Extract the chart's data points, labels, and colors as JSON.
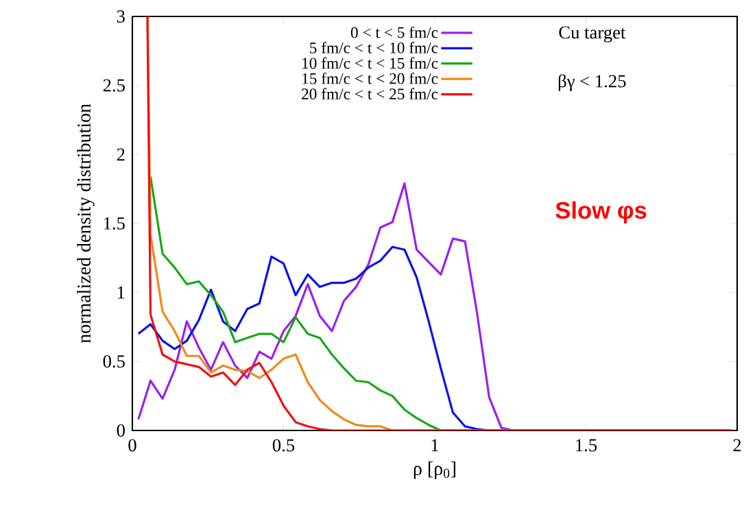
{
  "chart_data": {
    "type": "line",
    "xlabel": "ρ [ρ$_{0}$]",
    "ylabel": "normalized density distribution",
    "xlim": [
      0,
      2
    ],
    "ylim": [
      0,
      3
    ],
    "xticks": [
      0,
      0.5,
      1,
      1.5,
      2
    ],
    "yticks": [
      0,
      0.5,
      1,
      1.5,
      2,
      2.5,
      3
    ],
    "grid": false,
    "legend": "top",
    "marker": "none",
    "line_style": "solid",
    "annotations": [
      "Cu target",
      "βγ < 1.25",
      "Slow φs"
    ],
    "series": [
      {
        "name": "0 < t < 5 fm/c",
        "color": "#9b1ff0",
        "x": [
          0.02,
          0.06,
          0.1,
          0.14,
          0.18,
          0.22,
          0.26,
          0.3,
          0.34,
          0.38,
          0.42,
          0.46,
          0.5,
          0.54,
          0.58,
          0.62,
          0.66,
          0.7,
          0.74,
          0.78,
          0.82,
          0.86,
          0.9,
          0.94,
          0.98,
          1.02,
          1.06,
          1.1,
          1.14,
          1.18,
          1.22,
          1.26,
          1.98
        ],
        "values": [
          0.08,
          0.36,
          0.23,
          0.44,
          0.79,
          0.6,
          0.44,
          0.64,
          0.47,
          0.38,
          0.57,
          0.52,
          0.72,
          0.83,
          1.06,
          0.83,
          0.72,
          0.94,
          1.04,
          1.2,
          1.47,
          1.51,
          1.79,
          1.31,
          1.22,
          1.13,
          1.39,
          1.37,
          0.85,
          0.24,
          0.02,
          0,
          0
        ]
      },
      {
        "name": "5 fm/c < t < 10 fm/c",
        "color": "#0a14e6",
        "x": [
          0.02,
          0.06,
          0.1,
          0.14,
          0.18,
          0.22,
          0.26,
          0.3,
          0.34,
          0.38,
          0.42,
          0.46,
          0.5,
          0.54,
          0.58,
          0.62,
          0.66,
          0.7,
          0.74,
          0.78,
          0.82,
          0.86,
          0.9,
          0.94,
          0.98,
          1.02,
          1.06,
          1.1,
          1.14,
          1.18,
          1.98
        ],
        "values": [
          0.7,
          0.77,
          0.65,
          0.59,
          0.65,
          0.8,
          1.02,
          0.79,
          0.72,
          0.88,
          0.92,
          1.26,
          1.21,
          0.98,
          1.13,
          1.04,
          1.07,
          1.07,
          1.1,
          1.18,
          1.23,
          1.33,
          1.31,
          1.11,
          0.79,
          0.45,
          0.13,
          0.03,
          0.01,
          0,
          0
        ]
      },
      {
        "name": "10 fm/c < t < 15 fm/c",
        "color": "#18a818",
        "x": [
          0.06,
          0.1,
          0.14,
          0.18,
          0.22,
          0.26,
          0.3,
          0.34,
          0.38,
          0.42,
          0.46,
          0.5,
          0.54,
          0.58,
          0.62,
          0.66,
          0.7,
          0.74,
          0.78,
          0.82,
          0.86,
          0.9,
          0.94,
          0.98,
          1.02,
          1.98
        ],
        "values": [
          1.84,
          1.28,
          1.18,
          1.06,
          1.08,
          0.98,
          0.86,
          0.64,
          0.67,
          0.7,
          0.7,
          0.64,
          0.82,
          0.7,
          0.67,
          0.55,
          0.45,
          0.36,
          0.35,
          0.29,
          0.25,
          0.15,
          0.09,
          0.04,
          0,
          0
        ]
      },
      {
        "name": "15 fm/c < t < 20 fm/c",
        "color": "#f08a18",
        "x": [
          0.05,
          0.06,
          0.1,
          0.14,
          0.18,
          0.22,
          0.26,
          0.3,
          0.34,
          0.38,
          0.42,
          0.46,
          0.5,
          0.54,
          0.58,
          0.62,
          0.66,
          0.7,
          0.74,
          0.78,
          0.82,
          0.86,
          1.98
        ],
        "values": [
          3,
          1.42,
          0.86,
          0.72,
          0.54,
          0.54,
          0.42,
          0.47,
          0.44,
          0.43,
          0.38,
          0.44,
          0.52,
          0.55,
          0.35,
          0.22,
          0.14,
          0.08,
          0.04,
          0.03,
          0.03,
          0,
          0
        ]
      },
      {
        "name": "20 fm/c < t < 25 fm/c",
        "color": "#f01010",
        "x": [
          0.05,
          0.06,
          0.1,
          0.14,
          0.18,
          0.22,
          0.26,
          0.3,
          0.34,
          0.38,
          0.42,
          0.46,
          0.5,
          0.54,
          0.58,
          0.62,
          0.66,
          1.98
        ],
        "values": [
          3,
          0.84,
          0.55,
          0.5,
          0.48,
          0.46,
          0.39,
          0.42,
          0.33,
          0.44,
          0.49,
          0.35,
          0.18,
          0.06,
          0.03,
          0.01,
          0,
          0
        ]
      }
    ]
  }
}
